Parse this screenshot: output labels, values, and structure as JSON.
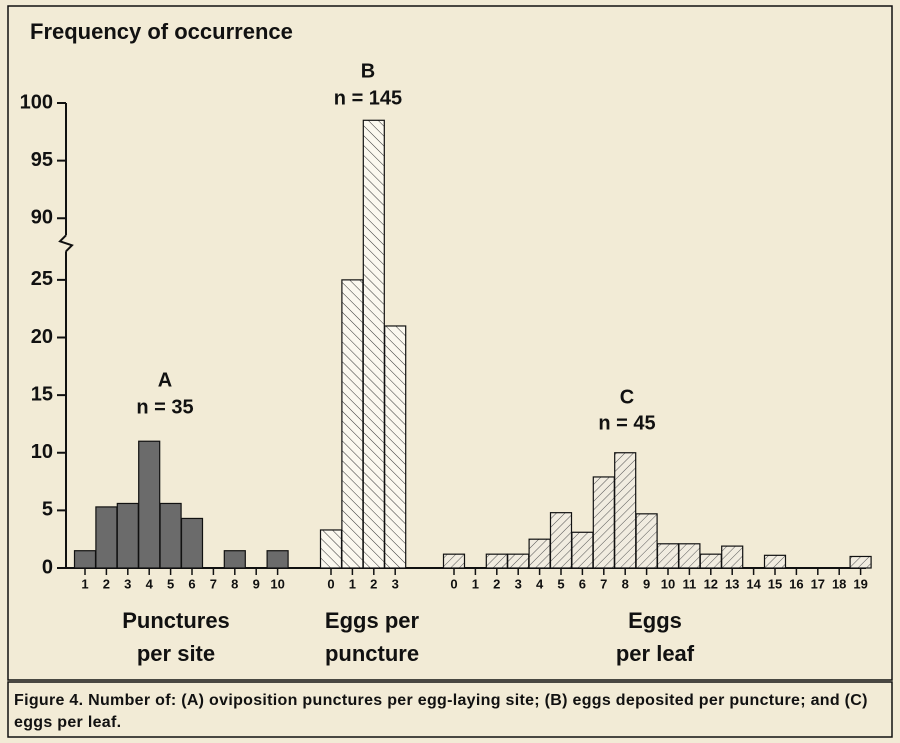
{
  "chart_data": {
    "type": "bar",
    "ylabel": "Frequency of occurrence",
    "ylim": [
      0,
      100
    ],
    "axis_break": [
      28,
      88
    ],
    "yticks": [
      0,
      5,
      10,
      15,
      20,
      25,
      90,
      95,
      100
    ],
    "groups": [
      {
        "label": "A",
        "n": "n = 35",
        "xlabel": [
          "Punctures",
          "per site"
        ],
        "pattern": "solid",
        "color": "#6b6b6b",
        "categories": [
          "1",
          "2",
          "3",
          "4",
          "5",
          "6",
          "7",
          "8",
          "9",
          "10"
        ],
        "values": [
          1.5,
          5.3,
          5.6,
          11,
          5.6,
          4.3,
          0,
          1.5,
          0,
          1.5
        ]
      },
      {
        "label": "B",
        "n": "n = 145",
        "xlabel": [
          "Eggs per",
          "puncture"
        ],
        "pattern": "hatch-back",
        "color": "#555555",
        "categories": [
          "0",
          "1",
          "2",
          "3"
        ],
        "values": [
          3.3,
          25,
          98.5,
          21
        ]
      },
      {
        "label": "C",
        "n": "n = 45",
        "xlabel": [
          "Eggs",
          "per leaf"
        ],
        "pattern": "hatch-forward",
        "color": "#777777",
        "categories": [
          "0",
          "1",
          "2",
          "3",
          "4",
          "5",
          "6",
          "7",
          "8",
          "9",
          "10",
          "11",
          "12",
          "13",
          "14",
          "15",
          "16",
          "17",
          "18",
          "19"
        ],
        "values": [
          1.2,
          0,
          1.2,
          1.2,
          2.5,
          4.8,
          3.1,
          7.9,
          10,
          4.7,
          2.1,
          2.1,
          1.2,
          1.9,
          0,
          1.1,
          0,
          0,
          0,
          1
        ]
      }
    ]
  },
  "caption": "Figure 4. Number of: (A) oviposition punctures per egg-laying site; (B) eggs deposited per puncture; and (C) eggs per leaf."
}
